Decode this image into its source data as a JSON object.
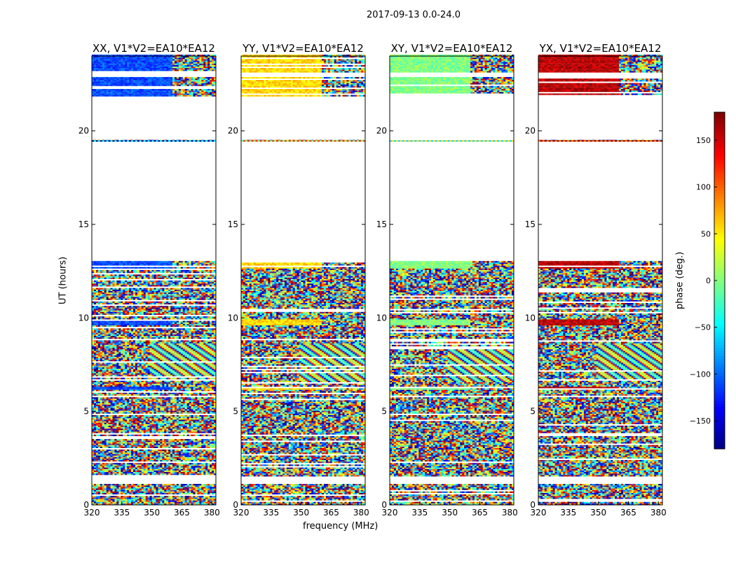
{
  "chart_data": {
    "type": "heatmap",
    "suptitle": "2017-09-13 0.0-24.0",
    "xlabel": "frequency (MHz)",
    "ylabel": "UT (hours)",
    "xlim": [
      320,
      382
    ],
    "ylim": [
      0,
      24
    ],
    "xticks": [
      "320",
      "335",
      "350",
      "365",
      "380"
    ],
    "yticks": [
      "0",
      "5",
      "10",
      "15",
      "20"
    ],
    "panels": [
      {
        "title": "XX, V1*V2=EA10*EA12",
        "base_phase": -110
      },
      {
        "title": "YY, V1*V2=EA10*EA12",
        "base_phase": 60
      },
      {
        "title": "XY, V1*V2=EA10*EA12",
        "base_phase": 0
      },
      {
        "title": "YX, V1*V2=EA10*EA12",
        "base_phase": 160
      }
    ],
    "colorbar": {
      "label": "phase (deg.)",
      "range": [
        -180,
        180
      ],
      "ticks": [
        "150",
        "100",
        "50",
        "0",
        "−50",
        "−100",
        "−150"
      ],
      "tick_values": [
        150,
        100,
        50,
        0,
        -50,
        -100,
        -150
      ],
      "colormap": "jet"
    },
    "coherent_blocks_hours": [
      [
        21.8,
        22.8
      ],
      [
        23.1,
        24.0
      ],
      [
        12.6,
        13.0
      ],
      [
        6.1,
        6.3
      ],
      [
        9.6,
        9.9
      ]
    ],
    "observation_gaps_hours": [
      [
        13.0,
        19.4
      ],
      [
        19.5,
        21.8
      ],
      [
        22.8,
        23.1
      ],
      [
        1.1,
        1.5
      ]
    ],
    "fringe_blocks_hours": [
      [
        7.0,
        8.6
      ],
      [
        6.5,
        7.0
      ]
    ]
  }
}
